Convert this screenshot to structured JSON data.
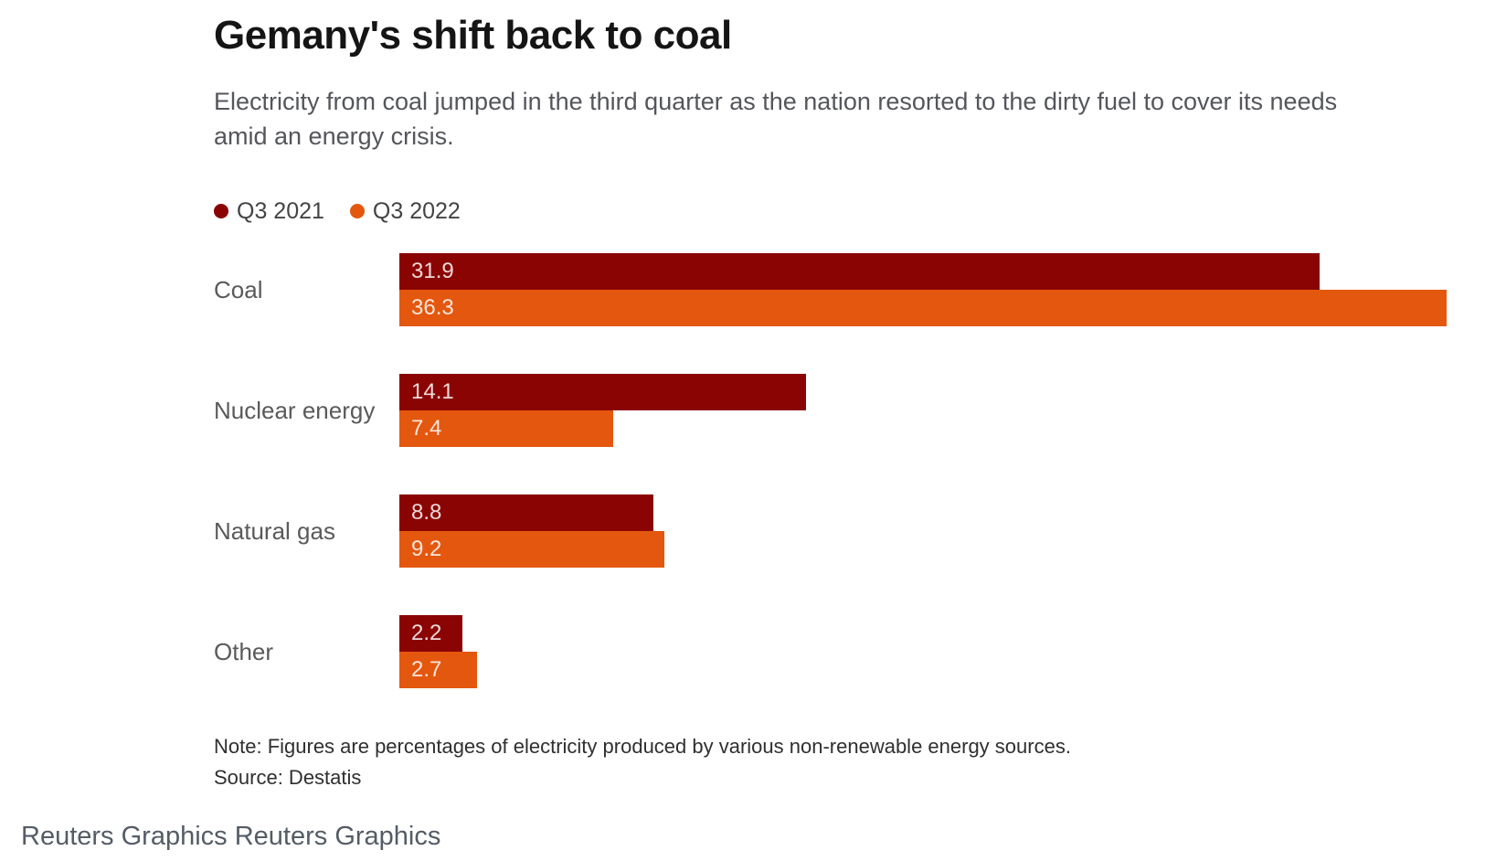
{
  "header": {
    "title": "Gemany's shift back to coal",
    "subtitle": "Electricity from coal jumped in the third quarter as the nation resorted to the dirty fuel to cover its needs amid an energy crisis."
  },
  "chart_data": {
    "type": "bar",
    "orientation": "horizontal",
    "title": "Gemany's shift back to coal",
    "categories": [
      "Coal",
      "Nuclear energy",
      "Natural gas",
      "Other"
    ],
    "series": [
      {
        "name": "Q3 2021",
        "color": "#8b0404",
        "values": [
          31.9,
          14.1,
          8.8,
          2.2
        ]
      },
      {
        "name": "Q3 2022",
        "color": "#e4570e",
        "values": [
          36.3,
          7.4,
          9.2,
          2.7
        ]
      }
    ],
    "xlim": [
      0,
      36.3
    ],
    "grid": "off",
    "axis_ticks": "none",
    "value_labels": "inside-start",
    "legend_position": "top-left"
  },
  "footnotes": {
    "note": "Note: Figures are percentages of electricity produced by various non-renewable energy sources.",
    "source": "Source: Destatis"
  },
  "footer": {
    "links": [
      "Reuters Graphics",
      "Reuters Graphics"
    ]
  },
  "colors": {
    "q3_2021_bar": "#8b0404",
    "q3_2022_bar": "#e4570e",
    "bar_value_text": "rgba(255,255,255,0.85)",
    "title_text": "#151515",
    "subtitle_text": "#54565b",
    "footer_text": "#555c66"
  }
}
